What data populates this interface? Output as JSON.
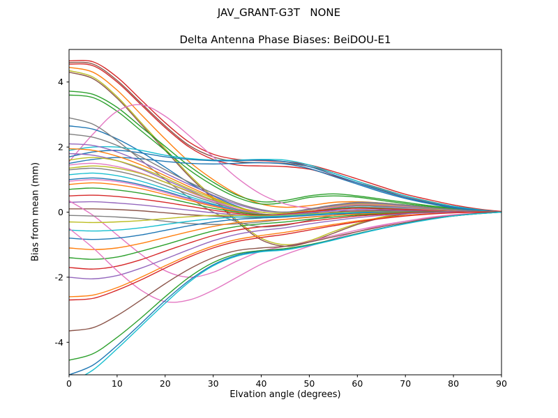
{
  "chart_data": {
    "type": "line",
    "title": "JAV_GRANT-G3T   NONE",
    "subtitle": "Delta Antenna Phase Biases: BeiDOU-E1",
    "xlabel": "Elvation angle (degrees)",
    "ylabel": "Bias from mean (mm)",
    "xlim": [
      0,
      90
    ],
    "ylim": [
      -5,
      5
    ],
    "xticks": [
      0,
      10,
      20,
      30,
      40,
      50,
      60,
      70,
      80,
      90
    ],
    "yticks": [
      -4,
      -2,
      0,
      2,
      4
    ],
    "grid": false,
    "legend": "none",
    "x": [
      0,
      5,
      10,
      15,
      20,
      25,
      30,
      35,
      40,
      45,
      50,
      55,
      60,
      65,
      70,
      75,
      80,
      85,
      90
    ],
    "series": [
      {
        "color": "#d62728",
        "values": [
          4.65,
          4.62,
          4.15,
          3.45,
          2.75,
          2.15,
          1.78,
          1.62,
          1.58,
          1.55,
          1.45,
          1.25,
          1.02,
          0.78,
          0.55,
          0.38,
          0.22,
          0.1,
          0.02
        ]
      },
      {
        "color": "#8c564b",
        "values": [
          4.6,
          4.55,
          4.05,
          3.35,
          2.65,
          2.05,
          1.7,
          1.55,
          1.52,
          1.5,
          1.4,
          1.2,
          0.95,
          0.72,
          0.5,
          0.33,
          0.18,
          0.08,
          0.0
        ]
      },
      {
        "color": "#d62728",
        "values": [
          4.55,
          4.5,
          4.0,
          3.3,
          2.6,
          2.0,
          1.62,
          1.45,
          1.42,
          1.4,
          1.32,
          1.12,
          0.9,
          0.68,
          0.46,
          0.3,
          0.16,
          0.07,
          0.0
        ]
      },
      {
        "color": "#bcbd22",
        "values": [
          4.35,
          4.15,
          3.55,
          2.75,
          1.95,
          1.15,
          0.45,
          -0.25,
          -0.8,
          -1.0,
          -0.88,
          -0.6,
          -0.35,
          -0.15,
          -0.05,
          0.0,
          0.02,
          0.01,
          0.0
        ]
      },
      {
        "color": "#8c564b",
        "values": [
          4.3,
          4.1,
          3.5,
          2.7,
          1.9,
          1.1,
          0.4,
          -0.3,
          -0.85,
          -1.05,
          -0.92,
          -0.65,
          -0.38,
          -0.18,
          -0.06,
          0.0,
          0.0,
          0.0,
          0.0
        ]
      },
      {
        "color": "#ff7f0e",
        "values": [
          4.45,
          4.3,
          3.75,
          3.0,
          2.25,
          1.55,
          1.0,
          0.55,
          0.25,
          0.15,
          0.2,
          0.3,
          0.32,
          0.28,
          0.2,
          0.13,
          0.07,
          0.02,
          0.0
        ]
      },
      {
        "color": "#2ca02c",
        "values": [
          3.72,
          3.62,
          3.22,
          2.62,
          2.02,
          1.42,
          0.92,
          0.52,
          0.32,
          0.36,
          0.5,
          0.56,
          0.5,
          0.4,
          0.3,
          0.2,
          0.12,
          0.05,
          0.0
        ]
      },
      {
        "color": "#2ca02c",
        "values": [
          3.6,
          3.52,
          3.1,
          2.5,
          1.9,
          1.3,
          0.82,
          0.45,
          0.25,
          0.3,
          0.45,
          0.5,
          0.46,
          0.36,
          0.26,
          0.17,
          0.1,
          0.04,
          0.0
        ]
      },
      {
        "color": "#e377c2",
        "values": [
          1.55,
          2.4,
          3.1,
          3.3,
          2.95,
          2.35,
          1.7,
          1.05,
          0.55,
          0.25,
          0.12,
          0.06,
          0.02,
          0.0,
          0.0,
          0.0,
          0.0,
          0.0,
          0.0
        ]
      },
      {
        "color": "#1f77b4",
        "values": [
          2.65,
          2.55,
          2.25,
          1.85,
          1.38,
          0.9,
          0.5,
          0.18,
          -0.05,
          -0.12,
          -0.05,
          0.08,
          0.15,
          0.15,
          0.12,
          0.08,
          0.04,
          0.0,
          0.0
        ]
      },
      {
        "color": "#7f7f7f",
        "values": [
          2.9,
          2.7,
          2.2,
          1.6,
          1.0,
          0.45,
          0.0,
          -0.3,
          -0.45,
          -0.4,
          -0.25,
          -0.1,
          0.0,
          0.05,
          0.05,
          0.02,
          0.0,
          0.0,
          0.0
        ]
      },
      {
        "color": "#17becf",
        "values": [
          1.9,
          2.0,
          2.0,
          1.9,
          1.75,
          1.65,
          1.6,
          1.6,
          1.62,
          1.6,
          1.45,
          1.2,
          0.95,
          0.7,
          0.5,
          0.32,
          0.18,
          0.08,
          0.0
        ]
      },
      {
        "color": "#1f77b4",
        "values": [
          1.7,
          1.85,
          1.9,
          1.82,
          1.7,
          1.62,
          1.58,
          1.58,
          1.6,
          1.55,
          1.4,
          1.15,
          0.9,
          0.66,
          0.45,
          0.28,
          0.15,
          0.06,
          0.0
        ]
      },
      {
        "color": "#1f77b4",
        "values": [
          1.5,
          1.62,
          1.68,
          1.64,
          1.56,
          1.5,
          1.48,
          1.5,
          1.52,
          1.48,
          1.34,
          1.1,
          0.86,
          0.62,
          0.42,
          0.26,
          0.13,
          0.05,
          0.0
        ]
      },
      {
        "color": "#ff7f0e",
        "values": [
          1.95,
          1.9,
          1.72,
          1.45,
          1.12,
          0.78,
          0.45,
          0.15,
          -0.05,
          -0.1,
          0.0,
          0.15,
          0.22,
          0.2,
          0.15,
          0.1,
          0.05,
          0.02,
          0.0
        ]
      },
      {
        "color": "#9467bd",
        "values": [
          1.8,
          1.75,
          1.58,
          1.32,
          1.0,
          0.68,
          0.36,
          0.1,
          -0.08,
          -0.12,
          -0.02,
          0.12,
          0.2,
          0.18,
          0.14,
          0.09,
          0.04,
          0.0,
          0.0
        ]
      },
      {
        "color": "#bcbd22",
        "values": [
          1.6,
          1.68,
          1.58,
          1.35,
          1.05,
          0.72,
          0.42,
          0.16,
          0.0,
          -0.04,
          0.06,
          0.2,
          0.3,
          0.28,
          0.22,
          0.14,
          0.08,
          0.03,
          0.0
        ]
      },
      {
        "color": "#e377c2",
        "values": [
          1.45,
          1.5,
          1.4,
          1.2,
          0.92,
          0.62,
          0.34,
          0.1,
          -0.05,
          -0.08,
          0.02,
          0.15,
          0.24,
          0.22,
          0.17,
          0.11,
          0.06,
          0.02,
          0.0
        ]
      },
      {
        "color": "#7f7f7f",
        "values": [
          1.3,
          1.35,
          1.26,
          1.08,
          0.82,
          0.55,
          0.3,
          0.08,
          -0.06,
          -0.08,
          0.0,
          0.12,
          0.2,
          0.18,
          0.14,
          0.09,
          0.04,
          0.0,
          0.0
        ]
      },
      {
        "color": "#17becf",
        "values": [
          1.15,
          1.2,
          1.12,
          0.95,
          0.72,
          0.48,
          0.25,
          0.05,
          -0.08,
          -0.1,
          -0.02,
          0.1,
          0.16,
          0.15,
          0.12,
          0.07,
          0.03,
          0.0,
          0.0
        ]
      },
      {
        "color": "#1f77b4",
        "values": [
          1.0,
          1.05,
          0.98,
          0.84,
          0.64,
          0.42,
          0.22,
          0.04,
          -0.08,
          -0.1,
          -0.02,
          0.08,
          0.14,
          0.13,
          0.1,
          0.06,
          0.03,
          0.0,
          0.0
        ]
      },
      {
        "color": "#bcbd22",
        "values": [
          1.35,
          1.42,
          1.35,
          1.18,
          0.92,
          0.64,
          0.38,
          0.15,
          0.0,
          -0.03,
          0.07,
          0.18,
          0.26,
          0.24,
          0.19,
          0.12,
          0.06,
          0.02,
          0.0
        ]
      },
      {
        "color": "#9467bd",
        "values": [
          2.1,
          2.05,
          1.85,
          1.55,
          1.2,
          0.85,
          0.52,
          0.24,
          0.05,
          0.0,
          0.08,
          0.2,
          0.28,
          0.26,
          0.2,
          0.13,
          0.07,
          0.02,
          0.0
        ]
      },
      {
        "color": "#7f7f7f",
        "values": [
          2.4,
          2.3,
          2.05,
          1.7,
          1.3,
          0.92,
          0.58,
          0.28,
          0.08,
          0.0,
          0.1,
          0.22,
          0.3,
          0.28,
          0.22,
          0.14,
          0.08,
          0.03,
          0.0
        ]
      },
      {
        "color": "#e377c2",
        "values": [
          0.95,
          1.0,
          0.94,
          0.8,
          0.6,
          0.4,
          0.2,
          0.03,
          -0.08,
          -0.09,
          0.0,
          0.1,
          0.15,
          0.14,
          0.11,
          0.07,
          0.03,
          0.0,
          0.0
        ]
      },
      {
        "color": "#ff7f0e",
        "values": [
          0.85,
          0.9,
          0.84,
          0.72,
          0.54,
          0.36,
          0.18,
          0.02,
          -0.08,
          -0.08,
          0.0,
          0.08,
          0.13,
          0.12,
          0.09,
          0.06,
          0.02,
          0.0,
          0.0
        ]
      },
      {
        "color": "#2ca02c",
        "values": [
          0.7,
          0.74,
          0.68,
          0.58,
          0.44,
          0.28,
          0.12,
          0.0,
          -0.08,
          -0.06,
          0.02,
          0.1,
          0.14,
          0.12,
          0.09,
          0.05,
          0.02,
          0.0,
          0.0
        ]
      },
      {
        "color": "#d62728",
        "values": [
          0.5,
          0.52,
          0.48,
          0.4,
          0.3,
          0.18,
          0.06,
          -0.04,
          -0.1,
          -0.06,
          0.02,
          0.08,
          0.12,
          0.1,
          0.08,
          0.05,
          0.02,
          0.0,
          0.0
        ]
      },
      {
        "color": "#9467bd",
        "values": [
          0.3,
          0.32,
          0.28,
          0.22,
          0.14,
          0.06,
          -0.02,
          -0.08,
          -0.12,
          -0.08,
          -0.02,
          0.04,
          0.08,
          0.07,
          0.05,
          0.03,
          0.01,
          0.0,
          0.0
        ]
      },
      {
        "color": "#8c564b",
        "values": [
          0.1,
          0.1,
          0.08,
          0.04,
          -0.02,
          -0.08,
          -0.12,
          -0.15,
          -0.16,
          -0.12,
          -0.06,
          0.0,
          0.04,
          0.04,
          0.03,
          0.02,
          0.0,
          0.0,
          0.0
        ]
      },
      {
        "color": "#e377c2",
        "values": [
          0.35,
          -0.1,
          -0.7,
          -1.3,
          -1.8,
          -2.0,
          -1.85,
          -1.5,
          -1.2,
          -1.05,
          -0.9,
          -0.72,
          -0.55,
          -0.4,
          -0.28,
          -0.18,
          -0.1,
          -0.04,
          0.0
        ]
      },
      {
        "color": "#7f7f7f",
        "values": [
          -0.1,
          -0.12,
          -0.15,
          -0.2,
          -0.28,
          -0.35,
          -0.38,
          -0.36,
          -0.3,
          -0.22,
          -0.15,
          -0.1,
          -0.06,
          -0.04,
          -0.02,
          0.0,
          0.0,
          0.0,
          0.0
        ]
      },
      {
        "color": "#bcbd22",
        "values": [
          -0.3,
          -0.32,
          -0.3,
          -0.26,
          -0.2,
          -0.14,
          -0.1,
          -0.1,
          -0.12,
          -0.1,
          -0.06,
          -0.02,
          0.0,
          0.01,
          0.01,
          0.0,
          0.0,
          0.0,
          0.0
        ]
      },
      {
        "color": "#17becf",
        "values": [
          -0.55,
          -0.58,
          -0.55,
          -0.48,
          -0.38,
          -0.28,
          -0.2,
          -0.15,
          -0.14,
          -0.12,
          -0.08,
          -0.04,
          -0.01,
          0.0,
          0.0,
          0.0,
          0.0,
          0.0,
          0.0
        ]
      },
      {
        "color": "#1f77b4",
        "values": [
          -0.8,
          -0.84,
          -0.8,
          -0.7,
          -0.56,
          -0.42,
          -0.3,
          -0.22,
          -0.18,
          -0.15,
          -0.1,
          -0.06,
          -0.03,
          -0.01,
          0.0,
          0.0,
          0.0,
          0.0,
          0.0
        ]
      },
      {
        "color": "#ff7f0e",
        "values": [
          -1.1,
          -1.15,
          -1.1,
          -0.96,
          -0.78,
          -0.6,
          -0.44,
          -0.32,
          -0.26,
          -0.22,
          -0.16,
          -0.1,
          -0.06,
          -0.03,
          -0.01,
          0.0,
          0.0,
          0.0,
          0.0
        ]
      },
      {
        "color": "#2ca02c",
        "values": [
          -1.4,
          -1.45,
          -1.38,
          -1.2,
          -1.0,
          -0.78,
          -0.58,
          -0.44,
          -0.36,
          -0.3,
          -0.22,
          -0.15,
          -0.09,
          -0.05,
          -0.02,
          0.0,
          0.0,
          0.0,
          0.0
        ]
      },
      {
        "color": "#d62728",
        "values": [
          -1.7,
          -1.75,
          -1.66,
          -1.46,
          -1.2,
          -0.95,
          -0.72,
          -0.55,
          -0.45,
          -0.38,
          -0.28,
          -0.2,
          -0.12,
          -0.07,
          -0.03,
          -0.01,
          0.0,
          0.0,
          0.0
        ]
      },
      {
        "color": "#9467bd",
        "values": [
          -2.0,
          -2.05,
          -1.95,
          -1.72,
          -1.44,
          -1.15,
          -0.88,
          -0.68,
          -0.56,
          -0.48,
          -0.36,
          -0.26,
          -0.17,
          -0.1,
          -0.05,
          -0.02,
          0.0,
          0.0,
          0.0
        ]
      },
      {
        "color": "#e377c2",
        "values": [
          -0.5,
          -1.1,
          -1.8,
          -2.4,
          -2.75,
          -2.7,
          -2.4,
          -2.0,
          -1.6,
          -1.3,
          -1.05,
          -0.82,
          -0.6,
          -0.42,
          -0.28,
          -0.16,
          -0.08,
          -0.03,
          0.0
        ]
      },
      {
        "color": "#ff7f0e",
        "values": [
          -2.6,
          -2.55,
          -2.32,
          -2.0,
          -1.65,
          -1.32,
          -1.04,
          -0.84,
          -0.72,
          -0.62,
          -0.5,
          -0.38,
          -0.27,
          -0.18,
          -0.1,
          -0.05,
          -0.02,
          0.0,
          0.0
        ]
      },
      {
        "color": "#d62728",
        "values": [
          -2.7,
          -2.65,
          -2.4,
          -2.08,
          -1.72,
          -1.38,
          -1.1,
          -0.9,
          -0.78,
          -0.68,
          -0.55,
          -0.42,
          -0.3,
          -0.2,
          -0.12,
          -0.06,
          -0.02,
          0.0,
          0.0
        ]
      },
      {
        "color": "#8c564b",
        "values": [
          -3.65,
          -3.55,
          -3.18,
          -2.7,
          -2.2,
          -1.75,
          -1.4,
          -1.18,
          -1.1,
          -1.05,
          -0.92,
          -0.76,
          -0.6,
          -0.45,
          -0.32,
          -0.2,
          -0.11,
          -0.04,
          0.0
        ]
      },
      {
        "color": "#2ca02c",
        "values": [
          -4.55,
          -4.35,
          -3.85,
          -3.25,
          -2.6,
          -2.0,
          -1.55,
          -1.28,
          -1.18,
          -1.12,
          -1.0,
          -0.84,
          -0.66,
          -0.5,
          -0.35,
          -0.22,
          -0.12,
          -0.05,
          0.0
        ]
      },
      {
        "color": "#1f77b4",
        "values": [
          -5.0,
          -4.7,
          -4.1,
          -3.42,
          -2.72,
          -2.1,
          -1.62,
          -1.32,
          -1.2,
          -1.15,
          -1.02,
          -0.85,
          -0.67,
          -0.5,
          -0.35,
          -0.22,
          -0.12,
          -0.05,
          0.0
        ]
      },
      {
        "color": "#17becf",
        "values": [
          -5.25,
          -4.85,
          -4.2,
          -3.5,
          -2.8,
          -2.15,
          -1.65,
          -1.35,
          -1.22,
          -1.16,
          -1.03,
          -0.86,
          -0.68,
          -0.51,
          -0.36,
          -0.23,
          -0.12,
          -0.05,
          0.0
        ]
      }
    ]
  }
}
